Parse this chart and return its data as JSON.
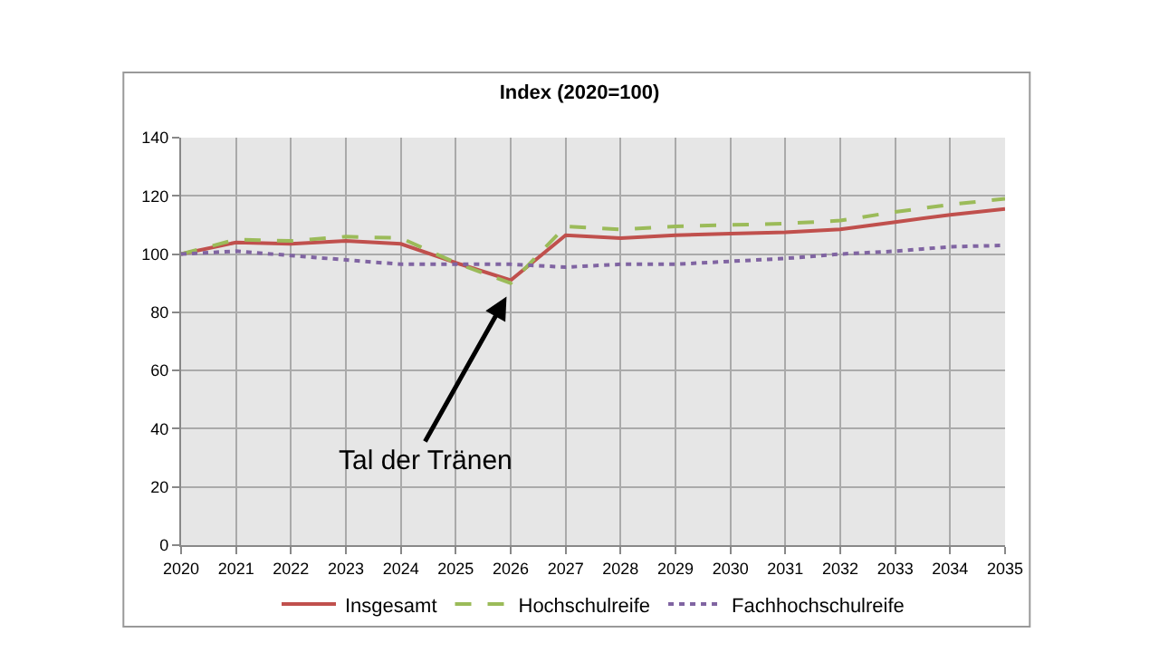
{
  "chart_data": {
    "type": "line",
    "title": "Index (2020=100)",
    "x": [
      2020,
      2021,
      2022,
      2023,
      2024,
      2025,
      2026,
      2027,
      2028,
      2029,
      2030,
      2031,
      2032,
      2033,
      2034,
      2035
    ],
    "series": [
      {
        "name": "Insgesamt",
        "color": "#c0504d",
        "line_style": "solid",
        "values": [
          100,
          104,
          103.5,
          104.5,
          103.5,
          97,
          91,
          106.5,
          105.5,
          106.5,
          107,
          107.5,
          108.5,
          111,
          113.5,
          115.5
        ]
      },
      {
        "name": "Hochschulreife",
        "color": "#9bbb59",
        "line_style": "dashed",
        "values": [
          100,
          105,
          104.5,
          106,
          105.5,
          97,
          90,
          109.5,
          108.5,
          109.5,
          110,
          110.5,
          111.5,
          114.5,
          117,
          119
        ]
      },
      {
        "name": "Fachhochschulreife",
        "color": "#8064a2",
        "line_style": "dotted",
        "values": [
          100,
          101,
          99.5,
          98,
          96.5,
          96.5,
          96.5,
          95.5,
          96.5,
          96.5,
          97.5,
          98.5,
          100,
          101,
          102.5,
          103
        ]
      }
    ],
    "xlim": [
      2020,
      2035
    ],
    "xticks": [
      2020,
      2021,
      2022,
      2023,
      2024,
      2025,
      2026,
      2027,
      2028,
      2029,
      2030,
      2031,
      2032,
      2033,
      2034,
      2035
    ],
    "ylim": [
      0,
      140
    ],
    "yticks": [
      0,
      20,
      40,
      60,
      80,
      100,
      120,
      140
    ],
    "grid": true,
    "legend": "bottom",
    "marker": "none",
    "annotations": [
      "Tal der Tränen"
    ]
  }
}
